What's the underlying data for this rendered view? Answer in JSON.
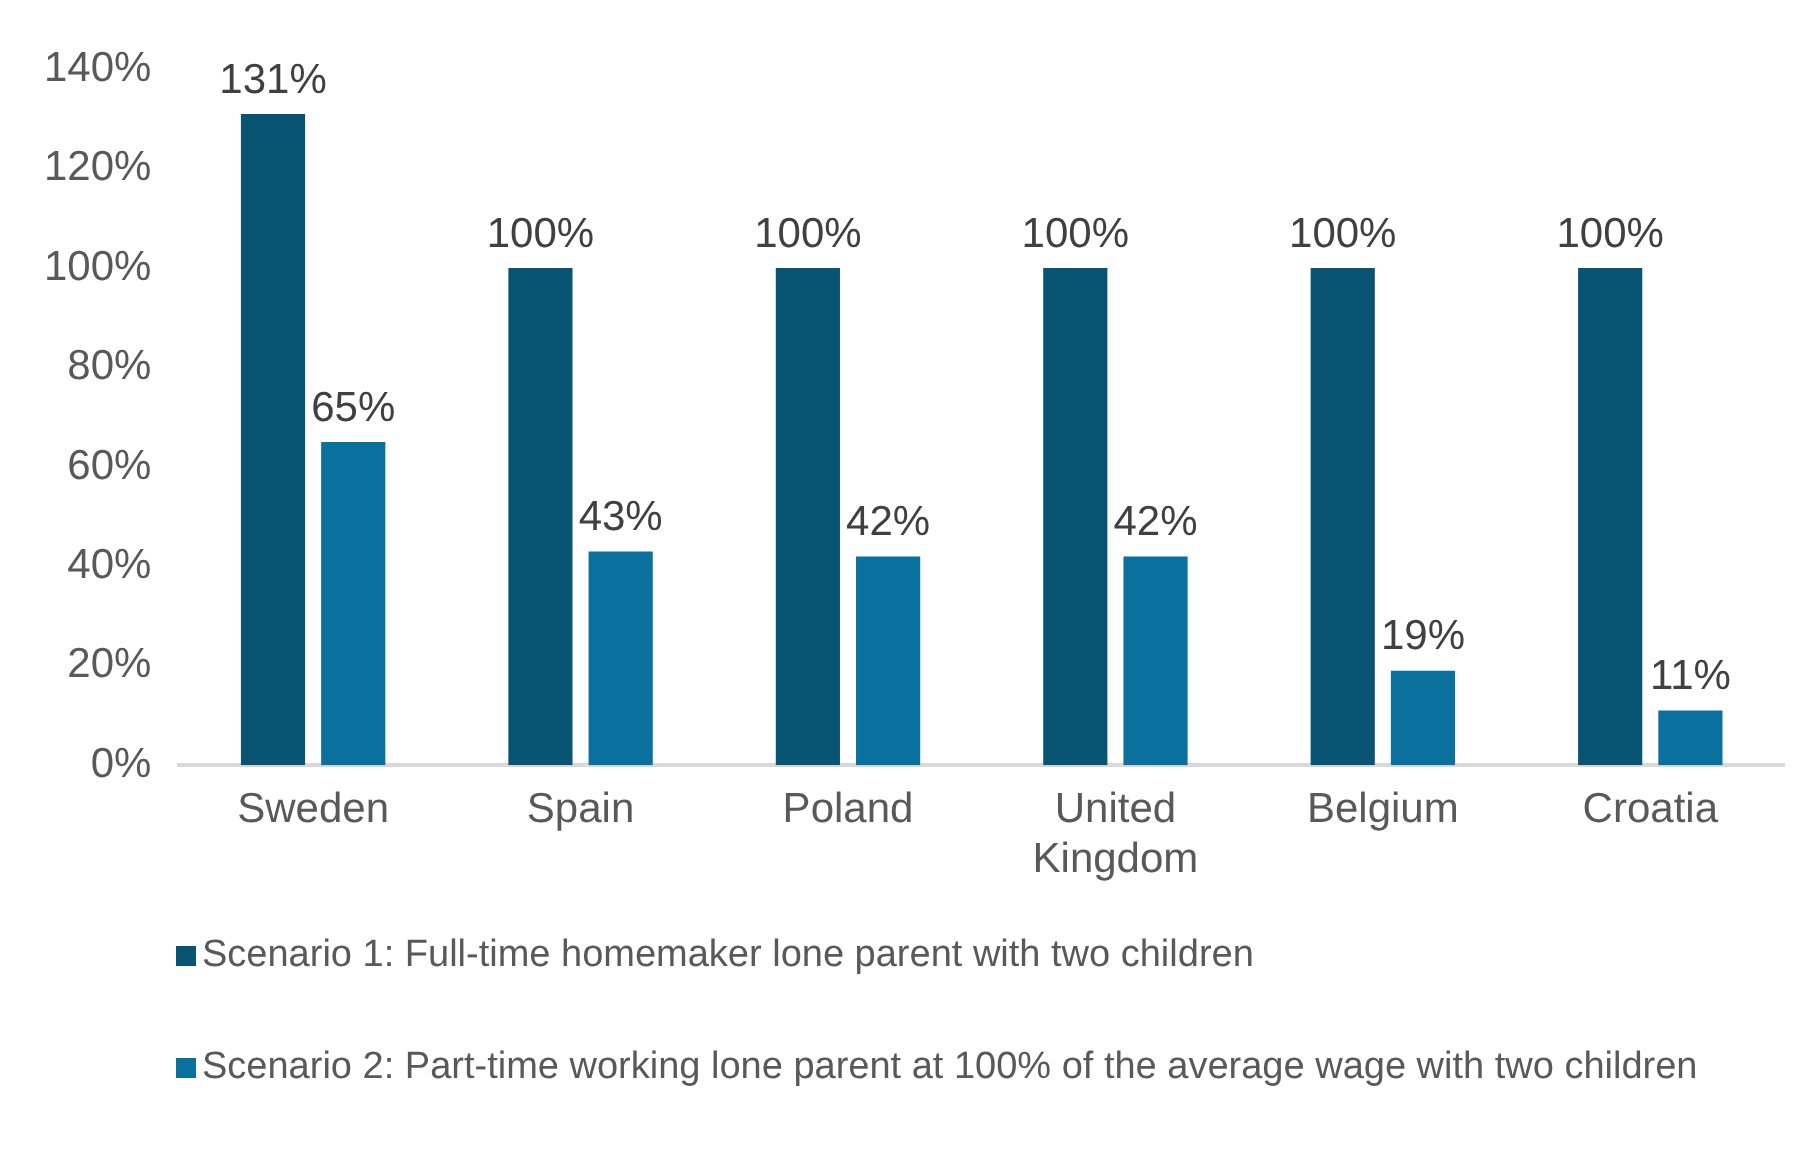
{
  "chart_data": {
    "type": "bar",
    "categories": [
      "Sweden",
      "Spain",
      "Poland",
      "United Kingdom",
      "Belgium",
      "Croatia"
    ],
    "series": [
      {
        "name": "Scenario 1: Full-time homemaker lone parent with two children",
        "color": "#0a5473",
        "values": [
          131,
          100,
          100,
          100,
          100,
          100
        ],
        "value_labels": [
          "131%",
          "100%",
          "100%",
          "100%",
          "100%",
          "100%"
        ]
      },
      {
        "name": "Scenario 2: Part-time working lone parent at 100% of the average wage with two children",
        "color": "#0a709e",
        "values": [
          65,
          43,
          42,
          42,
          19,
          11
        ],
        "value_labels": [
          "65%",
          "43%",
          "42%",
          "42%",
          "19%",
          "11%"
        ]
      }
    ],
    "ylim": [
      0,
      140
    ],
    "yticks": [
      {
        "value": 0,
        "label": "0%"
      },
      {
        "value": 20,
        "label": "20%"
      },
      {
        "value": 40,
        "label": "40%"
      },
      {
        "value": 60,
        "label": "60%"
      },
      {
        "value": 80,
        "label": "80%"
      },
      {
        "value": 100,
        "label": "100%"
      },
      {
        "value": 120,
        "label": "120%"
      },
      {
        "value": 140,
        "label": "140%"
      }
    ],
    "grid": false,
    "legend": "bottom"
  }
}
